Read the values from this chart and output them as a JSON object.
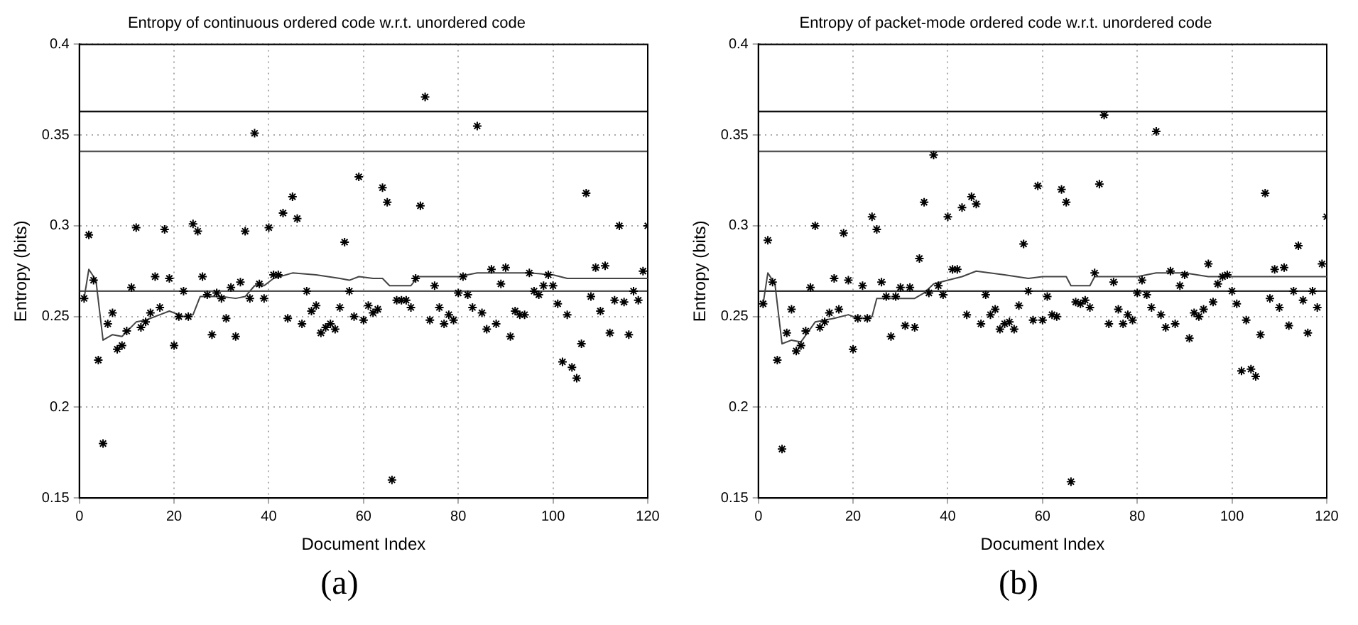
{
  "chart_data": [
    {
      "type": "scatter",
      "title": "Entropy of continuous ordered code w.r.t. unordered code",
      "xlabel": "Document Index",
      "ylabel": "Entropy (bits)",
      "xlim": [
        0,
        120
      ],
      "ylim": [
        0.15,
        0.4
      ],
      "xticks": [
        0,
        20,
        40,
        60,
        80,
        100,
        120
      ],
      "yticks": [
        0.15,
        0.2,
        0.25,
        0.3,
        0.35,
        0.4
      ],
      "grid": true,
      "marker": "cross",
      "series": [
        {
          "color": "#000000",
          "x": [
            1,
            2,
            3,
            4,
            5,
            6,
            7,
            8,
            9,
            10,
            11,
            12,
            13,
            14,
            15,
            16,
            17,
            18,
            19,
            20,
            21,
            22,
            23,
            24,
            25,
            26,
            27,
            28,
            29,
            30,
            31,
            32,
            33,
            34,
            35,
            36,
            37,
            38,
            39,
            40,
            41,
            42,
            43,
            44,
            45,
            46,
            47,
            48,
            49,
            50,
            51,
            52,
            53,
            54,
            55,
            56,
            57,
            58,
            59,
            60,
            61,
            62,
            63,
            64,
            65,
            66,
            67,
            68,
            69,
            70,
            71,
            72,
            73,
            74,
            75,
            76,
            77,
            78,
            79,
            80,
            81,
            82,
            83,
            84,
            85,
            86,
            87,
            88,
            89,
            90,
            91,
            92,
            93,
            94,
            95,
            96,
            97,
            98,
            99,
            100,
            101,
            102,
            103,
            104,
            105,
            106,
            107,
            108,
            109,
            110,
            111,
            112,
            113,
            114,
            115,
            116,
            117,
            118,
            119,
            120
          ],
          "values": [
            0.26,
            0.295,
            0.27,
            0.226,
            0.18,
            0.246,
            0.252,
            0.232,
            0.234,
            0.242,
            0.266,
            0.299,
            0.244,
            0.247,
            0.252,
            0.272,
            0.255,
            0.298,
            0.271,
            0.234,
            0.25,
            0.264,
            0.25,
            0.301,
            0.297,
            0.272,
            0.262,
            0.24,
            0.263,
            0.26,
            0.249,
            0.266,
            0.239,
            0.269,
            0.297,
            0.26,
            0.351,
            0.268,
            0.26,
            0.299,
            0.273,
            0.273,
            0.307,
            0.249,
            0.316,
            0.304,
            0.246,
            0.264,
            0.253,
            0.256,
            0.241,
            0.244,
            0.246,
            0.243,
            0.255,
            0.291,
            0.264,
            0.25,
            0.327,
            0.248,
            0.256,
            0.252,
            0.254,
            0.321,
            0.313,
            0.16,
            0.259,
            0.259,
            0.259,
            0.255,
            0.271,
            0.311,
            0.371,
            0.248,
            0.267,
            0.255,
            0.246,
            0.251,
            0.248,
            0.263,
            0.272,
            0.262,
            0.255,
            0.355,
            0.252,
            0.243,
            0.276,
            0.246,
            0.268,
            0.277,
            0.239,
            0.253,
            0.251,
            0.251,
            0.274,
            0.264,
            0.262,
            0.267,
            0.273,
            0.267,
            0.257,
            0.225,
            0.251,
            0.222,
            0.216,
            0.235,
            0.318,
            0.261,
            0.277,
            0.253,
            0.278,
            0.241,
            0.259,
            0.3,
            0.258,
            0.24,
            0.264,
            0.259,
            0.275,
            0.3
          ]
        },
        {
          "type": "line",
          "color": "#444444",
          "marker": "none",
          "x": [
            1,
            2,
            3.5,
            5,
            7,
            9,
            12,
            14,
            17,
            19,
            22,
            24,
            25.5,
            30,
            33,
            35,
            37,
            39,
            41,
            45,
            50,
            55,
            57,
            59,
            62,
            64,
            65.5,
            68,
            70,
            71.5,
            75,
            80,
            84,
            90,
            95,
            100,
            103,
            110,
            120
          ],
          "values": [
            0.26,
            0.276,
            0.27,
            0.237,
            0.24,
            0.239,
            0.247,
            0.248,
            0.251,
            0.253,
            0.25,
            0.251,
            0.261,
            0.261,
            0.26,
            0.261,
            0.267,
            0.267,
            0.271,
            0.274,
            0.273,
            0.271,
            0.27,
            0.272,
            0.271,
            0.271,
            0.267,
            0.267,
            0.267,
            0.272,
            0.272,
            0.272,
            0.274,
            0.274,
            0.274,
            0.273,
            0.271,
            0.271,
            0.271
          ]
        }
      ],
      "ref_lines": [
        {
          "axis": "y",
          "value": 0.363,
          "color": "#111111"
        },
        {
          "axis": "y",
          "value": 0.341,
          "color": "#555555"
        },
        {
          "axis": "y",
          "value": 0.264,
          "color": "#555555"
        }
      ],
      "annotations": [
        "(a)"
      ]
    },
    {
      "type": "scatter",
      "title": "Entropy of packet-mode ordered code w.r.t. unordered code",
      "xlabel": "Document Index",
      "ylabel": "Entropy (bits)",
      "xlim": [
        0,
        120
      ],
      "ylim": [
        0.15,
        0.4
      ],
      "xticks": [
        0,
        20,
        40,
        60,
        80,
        100,
        120
      ],
      "yticks": [
        0.15,
        0.2,
        0.25,
        0.3,
        0.35,
        0.4
      ],
      "grid": true,
      "marker": "cross",
      "series": [
        {
          "color": "#000000",
          "x": [
            1,
            2,
            3,
            4,
            5,
            6,
            7,
            8,
            9,
            10,
            11,
            12,
            13,
            14,
            15,
            16,
            17,
            18,
            19,
            20,
            21,
            22,
            23,
            24,
            25,
            26,
            27,
            28,
            29,
            30,
            31,
            32,
            33,
            34,
            35,
            36,
            37,
            38,
            39,
            40,
            41,
            42,
            43,
            44,
            45,
            46,
            47,
            48,
            49,
            50,
            51,
            52,
            53,
            54,
            55,
            56,
            57,
            58,
            59,
            60,
            61,
            62,
            63,
            64,
            65,
            66,
            67,
            68,
            69,
            70,
            71,
            72,
            73,
            74,
            75,
            76,
            77,
            78,
            79,
            80,
            81,
            82,
            83,
            84,
            85,
            86,
            87,
            88,
            89,
            90,
            91,
            92,
            93,
            94,
            95,
            96,
            97,
            98,
            99,
            100,
            101,
            102,
            103,
            104,
            105,
            106,
            107,
            108,
            109,
            110,
            111,
            112,
            113,
            114,
            115,
            116,
            117,
            118,
            119,
            120
          ],
          "values": [
            0.257,
            0.292,
            0.269,
            0.226,
            0.177,
            0.241,
            0.254,
            0.231,
            0.234,
            0.242,
            0.266,
            0.3,
            0.244,
            0.247,
            0.252,
            0.271,
            0.254,
            0.296,
            0.27,
            0.232,
            0.249,
            0.267,
            0.249,
            0.305,
            0.298,
            0.269,
            0.261,
            0.239,
            0.261,
            0.266,
            0.245,
            0.266,
            0.244,
            0.282,
            0.313,
            0.263,
            0.339,
            0.267,
            0.262,
            0.305,
            0.276,
            0.276,
            0.31,
            0.251,
            0.316,
            0.312,
            0.246,
            0.262,
            0.251,
            0.254,
            0.243,
            0.246,
            0.247,
            0.243,
            0.256,
            0.29,
            0.264,
            0.248,
            0.322,
            0.248,
            0.261,
            0.251,
            0.25,
            0.32,
            0.313,
            0.159,
            0.258,
            0.257,
            0.259,
            0.255,
            0.274,
            0.323,
            0.361,
            0.246,
            0.269,
            0.254,
            0.246,
            0.251,
            0.248,
            0.263,
            0.27,
            0.262,
            0.255,
            0.352,
            0.251,
            0.244,
            0.275,
            0.246,
            0.267,
            0.273,
            0.238,
            0.252,
            0.25,
            0.254,
            0.279,
            0.258,
            0.268,
            0.272,
            0.273,
            0.264,
            0.257,
            0.22,
            0.248,
            0.221,
            0.217,
            0.24,
            0.318,
            0.26,
            0.276,
            0.255,
            0.277,
            0.245,
            0.264,
            0.289,
            0.259,
            0.241,
            0.264,
            0.255,
            0.279,
            0.305
          ]
        },
        {
          "type": "line",
          "color": "#444444",
          "marker": "none",
          "x": [
            1,
            2,
            3.5,
            5,
            7,
            9,
            12,
            14,
            16,
            19,
            21,
            23,
            24,
            25,
            27,
            33,
            35,
            37,
            40,
            43,
            46,
            52,
            57,
            60,
            65,
            66,
            70,
            71,
            75,
            80,
            84,
            90,
            95,
            100,
            105,
            110,
            120
          ],
          "values": [
            0.257,
            0.274,
            0.268,
            0.235,
            0.237,
            0.236,
            0.247,
            0.248,
            0.249,
            0.251,
            0.249,
            0.249,
            0.25,
            0.26,
            0.26,
            0.26,
            0.263,
            0.268,
            0.27,
            0.272,
            0.275,
            0.273,
            0.271,
            0.272,
            0.272,
            0.267,
            0.267,
            0.272,
            0.272,
            0.272,
            0.274,
            0.274,
            0.272,
            0.272,
            0.272,
            0.272,
            0.272
          ]
        }
      ],
      "ref_lines": [
        {
          "axis": "y",
          "value": 0.363,
          "color": "#111111"
        },
        {
          "axis": "y",
          "value": 0.341,
          "color": "#555555"
        },
        {
          "axis": "y",
          "value": 0.264,
          "color": "#333333"
        }
      ],
      "annotations": [
        "(b)"
      ]
    }
  ]
}
